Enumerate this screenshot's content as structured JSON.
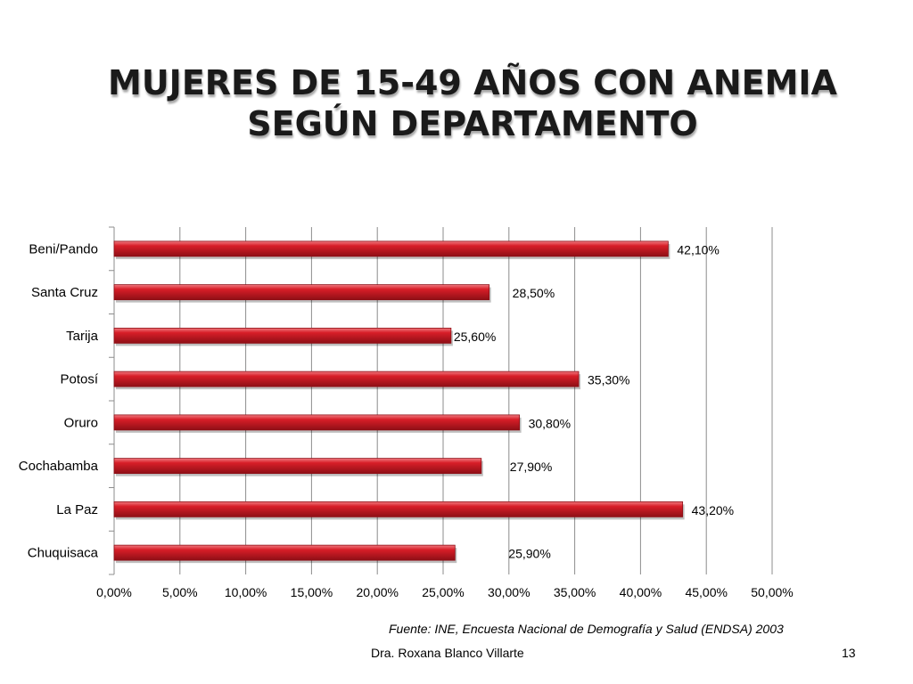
{
  "slide": {
    "title_line1": "MUJERES DE 15-49 AÑOS CON ANEMIA",
    "title_line2": "SEGÚN DEPARTAMENTO",
    "source": "Fuente: INE, Encuesta Nacional de Demografía y Salud (ENDSA) 2003",
    "author": "Dra. Roxana Blanco Villarte",
    "page_number": "13"
  },
  "colors": {
    "bar_fill": "#d81e28",
    "bar_dark": "#8e0f16",
    "bar_light": "#f07a80",
    "grid": "#8c8c8c"
  },
  "chart_data": {
    "type": "bar",
    "orientation": "horizontal",
    "title": "MUJERES DE 15-49 AÑOS CON ANEMIA SEGÚN DEPARTAMENTO",
    "categories": [
      "Beni/Pando",
      "Santa Cruz",
      "Tarija",
      "Potosí",
      "Oruro",
      "Cochabamba",
      "La Paz",
      "Chuquisaca"
    ],
    "values": [
      42.1,
      28.5,
      25.6,
      35.3,
      30.8,
      27.9,
      43.2,
      25.9
    ],
    "value_labels": [
      "42,10%",
      "28,50%",
      "25,60%",
      "35,30%",
      "30,80%",
      "27,90%",
      "43,20%",
      "25,90%"
    ],
    "xlim": [
      0,
      50
    ],
    "x_ticks": [
      0,
      5,
      10,
      15,
      20,
      25,
      30,
      35,
      40,
      45,
      50
    ],
    "x_tick_labels": [
      "0,00%",
      "5,00%",
      "10,00%",
      "15,00%",
      "20,00%",
      "25,00%",
      "30,00%",
      "35,00%",
      "40,00%",
      "45,00%",
      "50,00%"
    ],
    "grid": true,
    "legend": false
  }
}
